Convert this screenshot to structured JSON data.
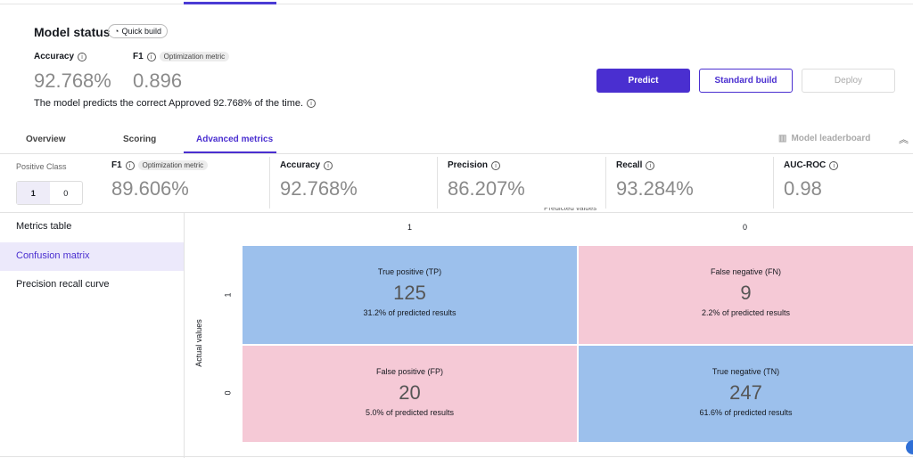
{
  "header": {
    "title": "Model status",
    "chip": "Quick build",
    "accuracy_label": "Accuracy",
    "accuracy": "92.768%",
    "f1_label": "F1",
    "opt_badge": "Optimization metric",
    "f1": "0.896",
    "description": "The model predicts the correct Approved 92.768% of the time."
  },
  "buttons": {
    "predict": "Predict",
    "standard_build": "Standard build",
    "deploy": "Deploy"
  },
  "tabs": [
    "Overview",
    "Scoring",
    "Advanced metrics"
  ],
  "active_tab": "Advanced metrics",
  "leaderboard": "Model leaderboard",
  "metrics": {
    "positive_class_label": "Positive Class",
    "classes": [
      "1",
      "0"
    ],
    "selected_class": "1",
    "items": [
      {
        "label": "F1",
        "value": "89.606%",
        "badge": "Optimization metric"
      },
      {
        "label": "Accuracy",
        "value": "92.768%"
      },
      {
        "label": "Precision",
        "value": "86.207%"
      },
      {
        "label": "Recall",
        "value": "93.284%"
      },
      {
        "label": "AUC-ROC",
        "value": "0.98"
      }
    ]
  },
  "sidebar": [
    "Metrics table",
    "Confusion matrix",
    "Precision recall curve"
  ],
  "selected_view": "Confusion matrix",
  "matrix": {
    "predicted_label": "Predicted values",
    "actual_label": "Actual values",
    "col_labels": [
      "1",
      "0"
    ],
    "row_labels": [
      "1",
      "0"
    ],
    "cells": [
      {
        "title": "True positive (TP)",
        "count": "125",
        "pct": "31.2% of predicted results"
      },
      {
        "title": "False negative (FN)",
        "count": "9",
        "pct": "2.2% of predicted results"
      },
      {
        "title": "False positive (FP)",
        "count": "20",
        "pct": "5.0% of predicted results"
      },
      {
        "title": "True negative (TN)",
        "count": "247",
        "pct": "61.6% of predicted results"
      }
    ]
  },
  "colors": {
    "accent": "#4a2fd0",
    "correct": "#9cc0ec",
    "incorrect": "#f5c9d6"
  }
}
